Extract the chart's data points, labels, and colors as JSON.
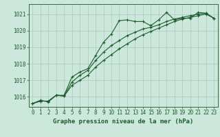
{
  "title": "Graphe pression niveau de la mer (hPa)",
  "bg_color": "#cce8dc",
  "grid_color": "#aacaba",
  "line_color": "#1a5c2a",
  "spine_color": "#336633",
  "xlim": [
    -0.5,
    23.5
  ],
  "ylim": [
    1015.4,
    1021.6
  ],
  "yticks": [
    1016,
    1017,
    1018,
    1019,
    1020,
    1021
  ],
  "xticks": [
    0,
    1,
    2,
    3,
    4,
    5,
    6,
    7,
    8,
    9,
    10,
    11,
    12,
    13,
    14,
    15,
    16,
    17,
    18,
    19,
    20,
    21,
    22,
    23
  ],
  "series1": [
    1015.6,
    1015.8,
    1015.7,
    1016.1,
    1016.1,
    1017.2,
    1017.5,
    1017.7,
    1018.5,
    1019.3,
    1019.8,
    1020.6,
    1020.65,
    1020.55,
    1020.55,
    1020.3,
    1020.65,
    1021.1,
    1020.65,
    1020.75,
    1020.75,
    1021.1,
    1021.05,
    1020.75
  ],
  "series2": [
    1015.6,
    1015.75,
    1015.75,
    1016.1,
    1016.05,
    1016.9,
    1017.3,
    1017.6,
    1018.2,
    1018.7,
    1019.1,
    1019.4,
    1019.7,
    1019.9,
    1020.1,
    1020.2,
    1020.35,
    1020.55,
    1020.7,
    1020.8,
    1020.9,
    1021.0,
    1021.05,
    1020.75
  ],
  "series3": [
    1015.6,
    1015.75,
    1015.75,
    1016.1,
    1016.05,
    1016.7,
    1017.0,
    1017.3,
    1017.8,
    1018.2,
    1018.55,
    1018.9,
    1019.2,
    1019.5,
    1019.75,
    1019.95,
    1020.15,
    1020.35,
    1020.55,
    1020.7,
    1020.8,
    1020.9,
    1021.0,
    1020.75
  ],
  "ylabel_fontsize": 5.5,
  "xlabel_fontsize": 5.5,
  "title_fontsize": 6.5,
  "marker_size": 3,
  "linewidth": 0.8
}
